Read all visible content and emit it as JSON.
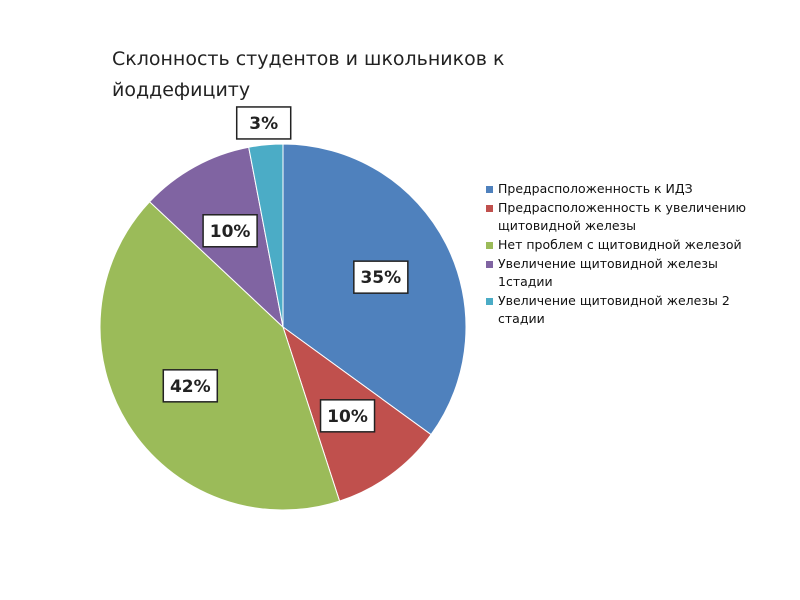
{
  "chart_data": {
    "type": "pie",
    "title": "Склонность студентов  и школьников к йоддефициту",
    "categories": [
      "Предрасположенность к ИДЗ",
      "Предрасположенность к увеличению щитовидной железы",
      "Нет проблем с щитовидной железой",
      "Увеличение щитовидной железы 1стадии",
      "Увеличение щитовидной железы 2 стадии"
    ],
    "values": [
      35,
      10,
      42,
      10,
      3
    ],
    "value_labels": [
      "35%",
      "10%",
      "42%",
      "10%",
      "3%"
    ],
    "colors": [
      "#4f81bd",
      "#c0504d",
      "#9bbb59",
      "#8064a2",
      "#4bacc6"
    ],
    "legend": "right"
  }
}
